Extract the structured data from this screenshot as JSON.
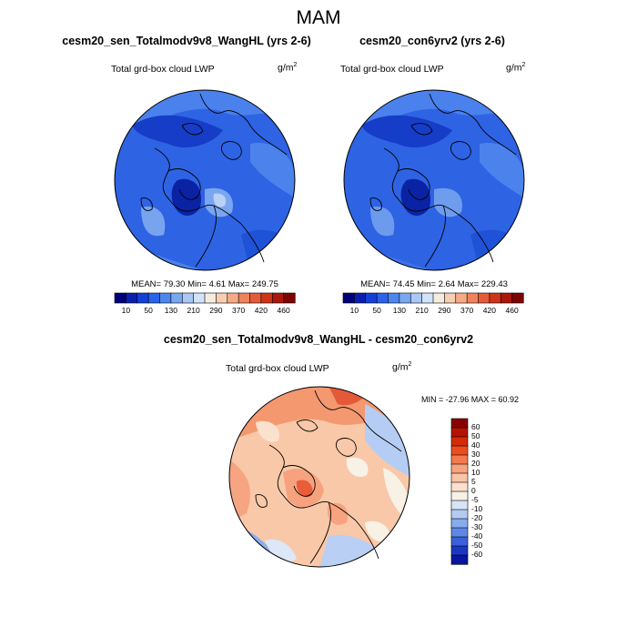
{
  "figure": {
    "title": "MAM"
  },
  "panels": [
    {
      "title": "cesm20_sen_Totalmodv9v8_WangHL (yrs 2-6)",
      "variable": "Total grd-box cloud LWP",
      "units_base": "g/m",
      "units_exp": "2",
      "stats": "MEAN=  79.30  Min=   4.61  Max= 249.75"
    },
    {
      "title": "cesm20_con6yrv2 (yrs 2-6)",
      "variable": "Total grd-box cloud LWP",
      "units_base": "g/m",
      "units_exp": "2",
      "stats": "MEAN=  74.45  Min=   2.64  Max= 229.43"
    }
  ],
  "shared_colorbar": {
    "tick_labels": [
      "10",
      "50",
      "130",
      "210",
      "290",
      "370",
      "420",
      "460"
    ],
    "colors": [
      "#00007a",
      "#0a1fb0",
      "#1240d8",
      "#2a62ea",
      "#4c86ee",
      "#79a8f2",
      "#a9c8f6",
      "#d2e2f9",
      "#f4ecdf",
      "#f8ceb2",
      "#f5aa86",
      "#ef835c",
      "#e55a38",
      "#cf3419",
      "#aa1708",
      "#7c0402"
    ]
  },
  "difference": {
    "title": "cesm20_sen_Totalmodv9v8_WangHL - cesm20_con6yrv2",
    "variable": "Total grd-box cloud LWP",
    "units_base": "g/m",
    "units_exp": "2",
    "stats": "MIN = -27.96 MAX =  60.92",
    "colorbar_labels": [
      "60",
      "50",
      "40",
      "30",
      "20",
      "10",
      "5",
      "0",
      "-5",
      "-10",
      "-20",
      "-30",
      "-40",
      "-50",
      "-60"
    ],
    "colorbar_colors": [
      "#8a0000",
      "#b51200",
      "#d52c08",
      "#ec4c1f",
      "#f57a4e",
      "#f8a27e",
      "#fac4a6",
      "#fbe0cc",
      "#f7f1e6",
      "#d7e4f8",
      "#b3cbf4",
      "#89acee",
      "#5f88e6",
      "#3a60db",
      "#1c36c4",
      "#0815a0"
    ]
  }
}
